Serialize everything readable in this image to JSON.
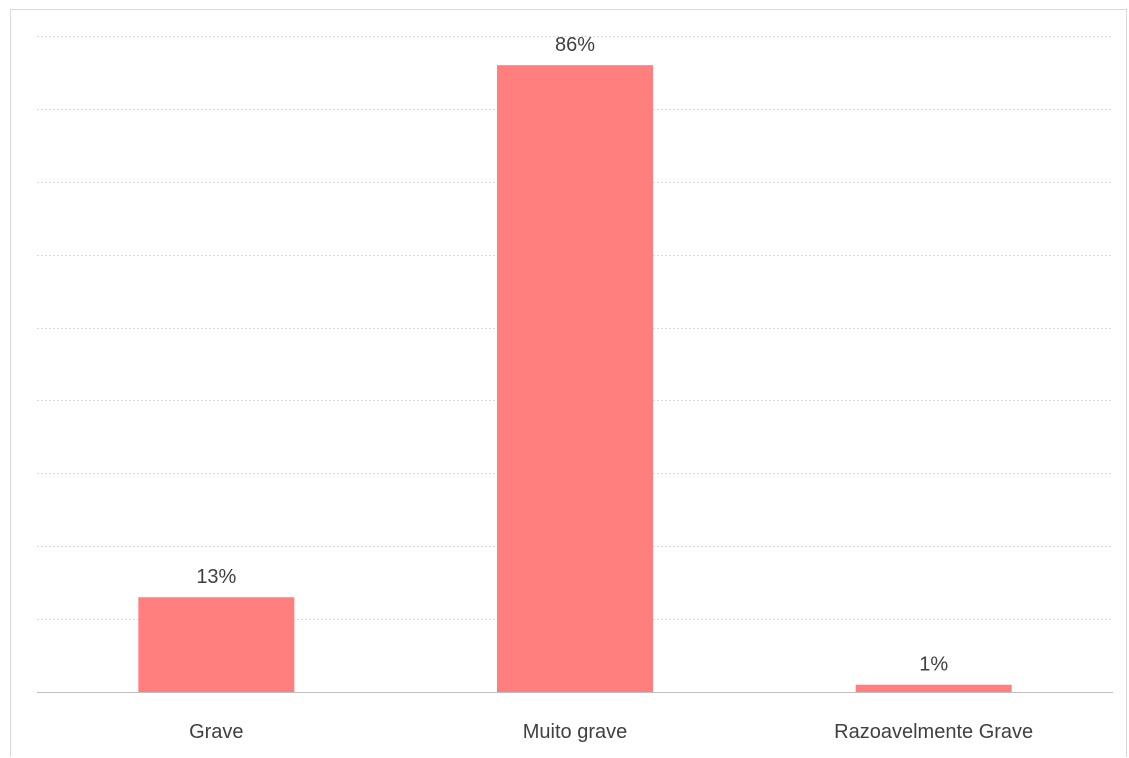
{
  "chart_data": {
    "type": "bar",
    "categories": [
      "Grave",
      "Muito grave",
      "Razoavelmente Grave"
    ],
    "values": [
      13,
      86,
      1
    ],
    "data_labels": [
      "13%",
      "86%",
      "1%"
    ],
    "unit": "%",
    "ylim": [
      0,
      90
    ],
    "y_gridline_step": 10,
    "grid": true,
    "bar_color": "#ff7f7f",
    "title": "",
    "xlabel": "",
    "ylabel": ""
  }
}
